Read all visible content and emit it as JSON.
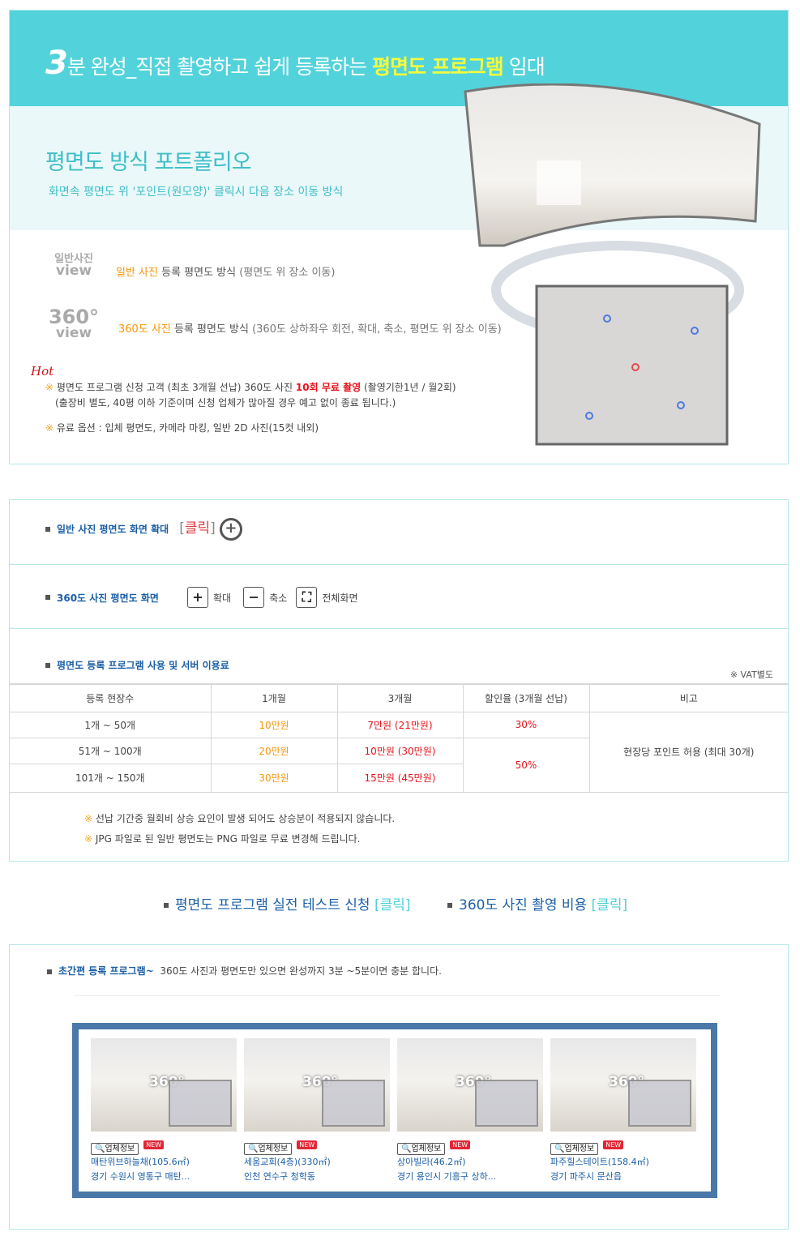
{
  "banner": {
    "title_num": "3",
    "title_pre": "분 완성_직접 촬영하고 쉽게 등록하는 ",
    "title_hl": "평면도 프로그램",
    "title_post": " 임대"
  },
  "portfolio": {
    "heading": "평면도 방식 포트폴리오",
    "subheading": "화면속 평면도 위 '포인트(원모양)' 클릭시 다음 장소 이동 방식"
  },
  "methods": [
    {
      "logo_top": "일반사진",
      "logo_bottom": "view",
      "hl": "일반 사진",
      "main": " 등록 평면도 방식 ",
      "detail": "(평면도 위 장소 이동)"
    },
    {
      "logo_top": "360°",
      "logo_bottom": "view",
      "hl": "360도 사진",
      "main": " 등록 평면도 방식 ",
      "detail": "(360도 상하좌우 회전, 확대, 축소, 평면도 위 장소 이동)"
    }
  ],
  "hot_label": "Hot",
  "notes": {
    "mark": "※",
    "n1_pre": " 평면도 프로그램 신청 고객 (최초 3개월 선납) 360도 사진 ",
    "n1_red": "10회 무료 촬영",
    "n1_post": " (촬영기한1년 / 월2회)",
    "n1_line2": "(출장비 별도, 40평 이하 기준이며 신청 업체가 많아질 경우 예고 없이 종료 됩니다.)",
    "n2": " 유료 옵션 : 입체 평면도, 카메라 마킹, 일반 2D 사진(15컷 내외)"
  },
  "zoom_section": {
    "label": "일반 사진 평면도 화면 확대",
    "click": "클릭"
  },
  "view360": {
    "label": "360도 사진 평면도 화면",
    "zoom_in": "확대",
    "zoom_out": "축소",
    "fullscreen": "전체화면"
  },
  "pricing": {
    "label": "평면도 등록 프로그램 사용 및 서버 이용료",
    "vat": "※ VAT별도",
    "headers": [
      "등록 현장수",
      "1개월",
      "3개월",
      "할인율 (3개월 선납)",
      "비고"
    ],
    "rows": [
      [
        "1개 ~ 50개",
        "10만원",
        "7만원 (21만원)"
      ],
      [
        "51개 ~ 100개",
        "20만원",
        "10만원 (30만원)"
      ],
      [
        "101개 ~ 150개",
        "30만원",
        "15만원 (45만원)"
      ]
    ],
    "discounts": [
      "30%",
      "50%"
    ],
    "remark": "현장당 포인트 허용 (최대 30개)",
    "foot1": " 선납 기간중 월회비 상승 요인이 발생 되어도 상승분이 적용되지 않습니다.",
    "foot2": " JPG 파일로 된 일반 평면도는 PNG 파일로 무료 변경해 드립니다."
  },
  "links": [
    {
      "label": "평면도 프로그램 실전 테스트 신청",
      "click": "[클릭]"
    },
    {
      "label": "360도 사진 촬영 비용",
      "click": "[클릭]"
    }
  ],
  "quick": {
    "label": "초간편 등록 프로그램~",
    "text": "360도 사진과 평면도만 있으면 완성까지 3분 ~5분이면 충분 합니다."
  },
  "gallery": {
    "thumb_label": "360°",
    "info_btn": "업체정보",
    "new_badge": "NEW",
    "items": [
      {
        "title": "매탄위브하늘채(105.6㎡)",
        "addr": "경기 수원시 영통구 매탄..."
      },
      {
        "title": "세움교회(4층)(330㎡)",
        "addr": "인천 연수구 청학동"
      },
      {
        "title": "상아빌라(46.2㎡)",
        "addr": "경기 용인시 기흥구 상하..."
      },
      {
        "title": "파주힐스테이트(158.4㎡)",
        "addr": "경기 파주시 문산읍"
      }
    ]
  }
}
